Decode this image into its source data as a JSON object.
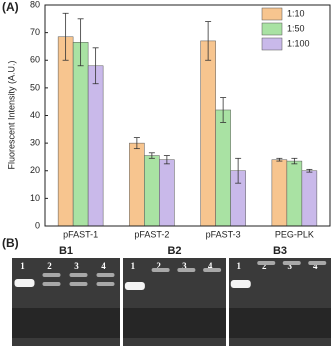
{
  "chart_data": {
    "type": "bar",
    "ylabel": "Fluorescent Intensity (A.U.)",
    "categories": [
      "pFAST-1",
      "pFAST-2",
      "pFAST-3",
      "PEG-PLK"
    ],
    "series": [
      {
        "name": "1:10",
        "color": "#f7c58f",
        "values": [
          68.5,
          30,
          67,
          24
        ],
        "errors": [
          8.5,
          2,
          7,
          0.5
        ]
      },
      {
        "name": "1:50",
        "color": "#a9e2a3",
        "values": [
          66.5,
          25.5,
          42,
          23.5
        ],
        "errors": [
          8.5,
          1,
          4.5,
          1
        ]
      },
      {
        "name": "1:100",
        "color": "#c9b9ea",
        "values": [
          58,
          24,
          20,
          20
        ],
        "errors": [
          6.5,
          1.5,
          4.5,
          0.5
        ]
      }
    ],
    "ylim": [
      0,
      80
    ],
    "yticks": [
      0,
      10,
      20,
      30,
      40,
      50,
      60,
      70,
      80
    ],
    "grid": false,
    "legend": "upper right"
  },
  "panel_labels": [
    "(A)",
    "(B)"
  ],
  "gels": [
    {
      "label": "B1",
      "lanes": [
        "1",
        "2",
        "3",
        "4"
      ]
    },
    {
      "label": "B2",
      "lanes": [
        "1",
        "2",
        "3",
        "4"
      ]
    },
    {
      "label": "B3",
      "lanes": [
        "1",
        "2",
        "3",
        "4"
      ]
    }
  ]
}
